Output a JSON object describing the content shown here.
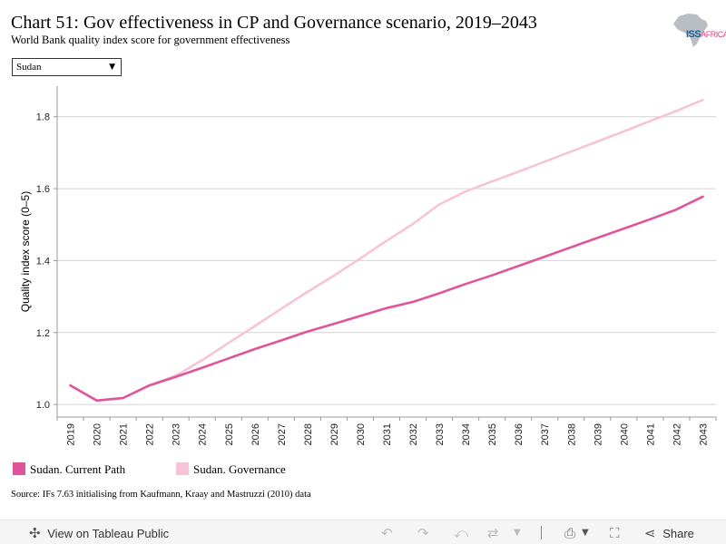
{
  "header": {
    "title": "Chart 51: Gov effectiveness in CP and Governance scenario, 2019–2043",
    "subtitle": "World Bank quality index score for government effectiveness"
  },
  "logo": {
    "text_main": "ISS",
    "text_sub": "AFRICA"
  },
  "filter": {
    "selected": "Sudan"
  },
  "chart_data": {
    "type": "line",
    "ylabel": "Quality index score (0–5)",
    "xlabel": "",
    "x": [
      "2019",
      "2020",
      "2021",
      "2022",
      "2023",
      "2024",
      "2025",
      "2026",
      "2027",
      "2028",
      "2029",
      "2030",
      "2031",
      "2032",
      "2033",
      "2034",
      "2035",
      "2036",
      "2037",
      "2038",
      "2039",
      "2040",
      "2041",
      "2042",
      "2043"
    ],
    "yticks": [
      1.0,
      1.2,
      1.4,
      1.6,
      1.8
    ],
    "ylim": [
      0.965,
      1.885
    ],
    "grid": true,
    "series": [
      {
        "name": "Sudan. Current Path",
        "color": "#e0549b",
        "values": [
          1.053,
          1.011,
          1.018,
          1.053,
          1.077,
          1.102,
          1.128,
          1.154,
          1.178,
          1.203,
          1.224,
          1.246,
          1.268,
          1.285,
          1.309,
          1.335,
          1.359,
          1.385,
          1.411,
          1.437,
          1.463,
          1.489,
          1.515,
          1.542,
          1.578
        ]
      },
      {
        "name": "Sudan. Governance",
        "color": "#f7c3d9",
        "values": [
          1.053,
          1.011,
          1.018,
          1.053,
          1.08,
          1.123,
          1.171,
          1.218,
          1.266,
          1.313,
          1.358,
          1.406,
          1.455,
          1.502,
          1.556,
          1.592,
          1.62,
          1.647,
          1.675,
          1.703,
          1.731,
          1.759,
          1.788,
          1.816,
          1.847
        ]
      }
    ],
    "legend_position": "bottom"
  },
  "source": "Source: IFs 7.63 initialising from Kaufmann, Kraay and Mastruzzi (2010) data",
  "footer": {
    "view_label": "View on Tableau Public",
    "share_label": "Share"
  }
}
